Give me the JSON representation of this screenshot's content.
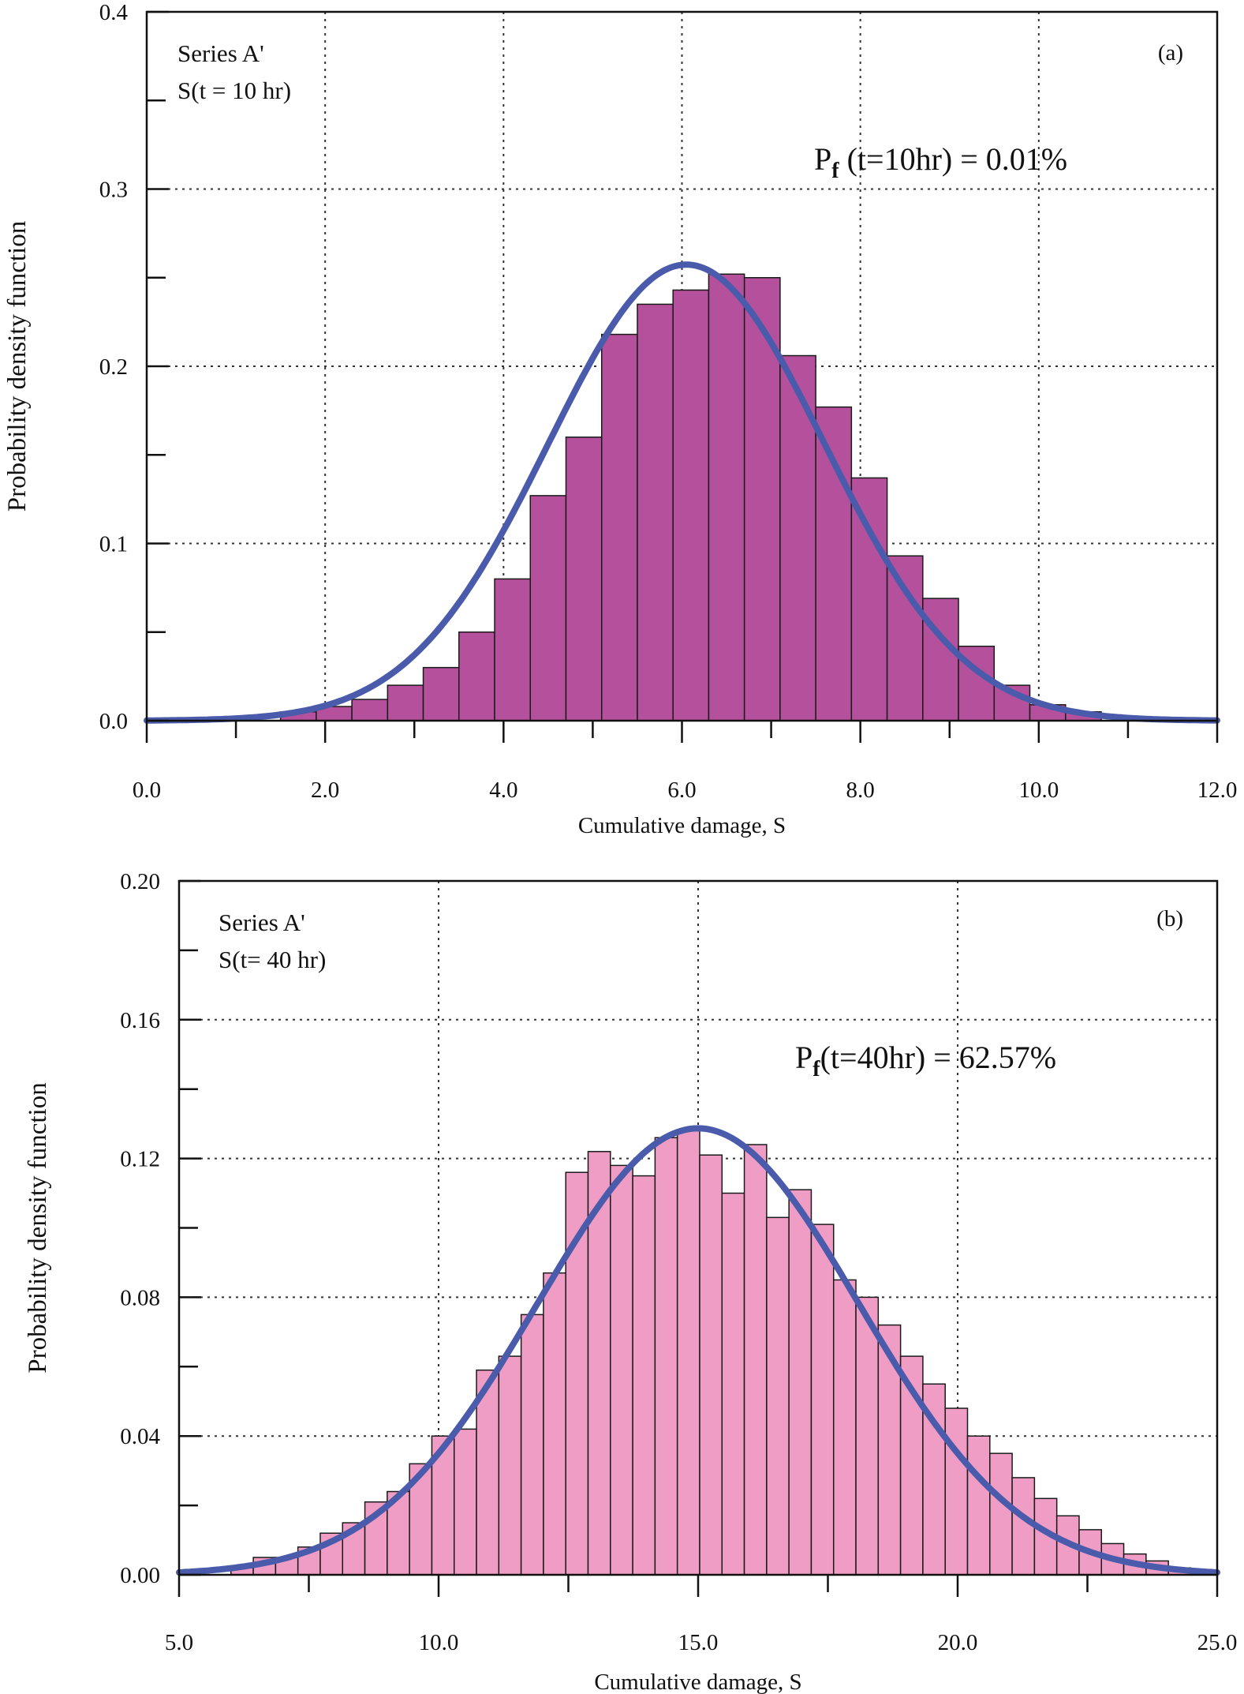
{
  "colors": {
    "bar_fill_a": "#b5519c",
    "bar_fill_b": "#f09dc6",
    "bar_stroke": "#1a1a1a",
    "curve": "#4a5bab",
    "grid": "#333333"
  },
  "chart_data": [
    {
      "type": "bar",
      "panel_label": "(a)",
      "annotation_line1": "Series A'",
      "annotation_line2": "S(t = 10 hr)",
      "pf_text_prefix": "P",
      "pf_text_sub": "f",
      "pf_text_rest": " (t=10hr) = 0.01%",
      "xlabel": "Cumulative damage, S",
      "ylabel": "Probability density function",
      "xlim": [
        0,
        12
      ],
      "ylim": [
        0,
        0.4
      ],
      "x_ticks": [
        0,
        2,
        4,
        6,
        8,
        10,
        12
      ],
      "x_tick_labels": [
        "0.0",
        "2.0",
        "4.0",
        "6.0",
        "8.0",
        "10.0",
        "12.0"
      ],
      "y_ticks": [
        0,
        0.1,
        0.2,
        0.3,
        0.4
      ],
      "y_tick_labels": [
        "0.0",
        "0.1",
        "0.2",
        "0.3",
        "0.4"
      ],
      "bin_start": 1.5,
      "bin_width": 0.4,
      "values": [
        0.005,
        0.008,
        0.012,
        0.02,
        0.03,
        0.05,
        0.08,
        0.127,
        0.16,
        0.218,
        0.235,
        0.243,
        0.252,
        0.25,
        0.206,
        0.177,
        0.137,
        0.093,
        0.069,
        0.042,
        0.02,
        0.009,
        0.005
      ],
      "fit": {
        "name": "Normal fit",
        "mean": 6.05,
        "sd": 1.55
      }
    },
    {
      "type": "bar",
      "panel_label": "(b)",
      "annotation_line1": "Series A'",
      "annotation_line2": "S(t= 40 hr)",
      "pf_text_prefix": "P",
      "pf_text_sub": "f",
      "pf_text_rest": "(t=40hr) = 62.57%",
      "xlabel": "Cumulative damage, S",
      "ylabel": "Probability density function",
      "xlim": [
        5,
        25
      ],
      "ylim": [
        0,
        0.2
      ],
      "x_ticks": [
        5,
        10,
        15,
        20,
        25
      ],
      "x_tick_labels": [
        "5.0",
        "10.0",
        "15.0",
        "20.0",
        "25.0"
      ],
      "y_ticks": [
        0,
        0.04,
        0.08,
        0.12,
        0.16,
        0.2
      ],
      "y_tick_labels": [
        "0.00",
        "0.04",
        "0.08",
        "0.12",
        "0.16",
        "0.20"
      ],
      "bin_start": 6.0,
      "bin_width": 0.43,
      "values": [
        0.002,
        0.005,
        0.005,
        0.008,
        0.012,
        0.015,
        0.021,
        0.024,
        0.032,
        0.04,
        0.042,
        0.059,
        0.063,
        0.075,
        0.087,
        0.116,
        0.122,
        0.118,
        0.115,
        0.126,
        0.128,
        0.121,
        0.11,
        0.124,
        0.103,
        0.111,
        0.101,
        0.085,
        0.08,
        0.072,
        0.063,
        0.055,
        0.048,
        0.04,
        0.035,
        0.028,
        0.022,
        0.017,
        0.013,
        0.009,
        0.006,
        0.004,
        0.002
      ],
      "fit": {
        "name": "Normal fit",
        "mean": 15.0,
        "sd": 3.1
      }
    }
  ]
}
